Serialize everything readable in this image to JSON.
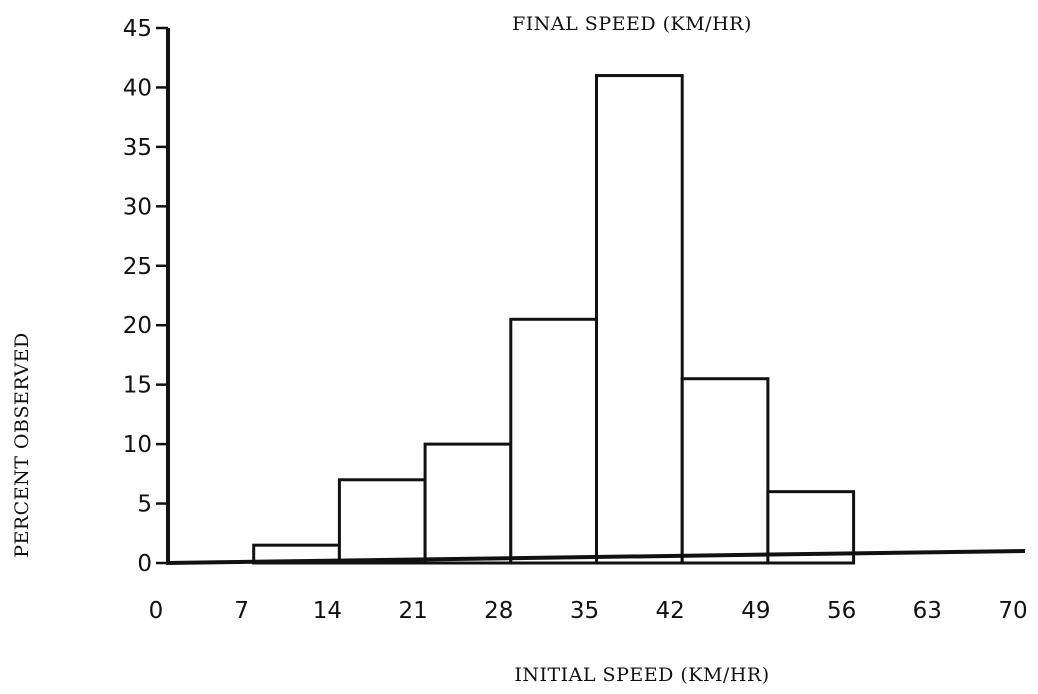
{
  "chart_data": {
    "type": "bar",
    "title": "FINAL SPEED (KM/HR)",
    "xlabel": "INITIAL SPEED (KM/HR)",
    "ylabel": "PERCENT OBSERVED",
    "xlim": [
      0,
      70
    ],
    "ylim": [
      0,
      45
    ],
    "x_ticks": [
      0,
      7,
      14,
      21,
      28,
      35,
      42,
      49,
      56,
      63,
      70
    ],
    "y_ticks": [
      0,
      5,
      10,
      15,
      20,
      25,
      30,
      35,
      40,
      45
    ],
    "grid": false,
    "legend": "none",
    "bins": [
      {
        "start": 7,
        "end": 14,
        "value": 1.5
      },
      {
        "start": 14,
        "end": 21,
        "value": 7
      },
      {
        "start": 21,
        "end": 28,
        "value": 10
      },
      {
        "start": 28,
        "end": 35,
        "value": 20.5
      },
      {
        "start": 35,
        "end": 42,
        "value": 41
      },
      {
        "start": 42,
        "end": 49,
        "value": 15.5
      },
      {
        "start": 49,
        "end": 56,
        "value": 6
      }
    ]
  }
}
